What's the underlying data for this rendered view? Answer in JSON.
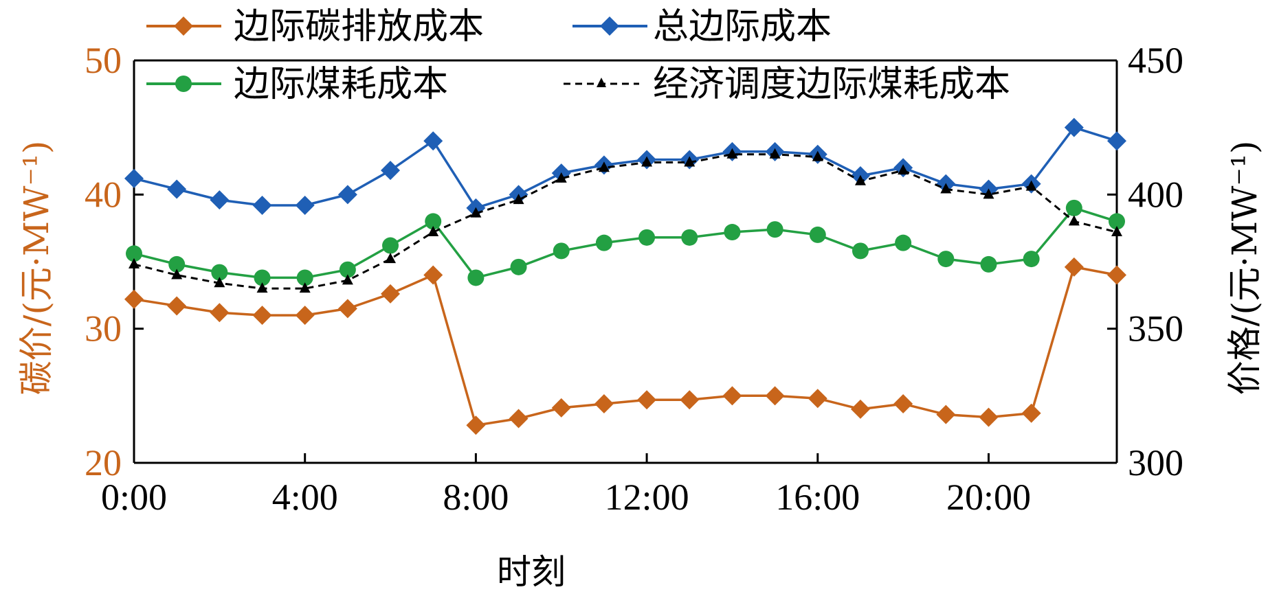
{
  "chart_data": {
    "type": "line",
    "xlabel": "时刻",
    "ylabel_left": "碳价/(元·MW⁻¹)",
    "ylabel_right": "价格/(元·MW⁻¹)",
    "x_ticks": [
      "0:00",
      "4:00",
      "8:00",
      "12:00",
      "16:00",
      "20:00"
    ],
    "x_tick_values": [
      0,
      4,
      8,
      12,
      16,
      20
    ],
    "x_range": [
      0,
      23
    ],
    "y_left_range": [
      20,
      50
    ],
    "y_left_ticks": [
      "20",
      "30",
      "40",
      "50"
    ],
    "y_left_tick_values": [
      20,
      30,
      40,
      50
    ],
    "y_right_range": [
      300,
      450
    ],
    "y_right_ticks": [
      "300",
      "350",
      "400",
      "450"
    ],
    "y_right_tick_values": [
      300,
      350,
      400,
      450
    ],
    "legend_placement": "top",
    "colors": {
      "carbon": "#c8651b",
      "total": "#1f5fb5",
      "coal": "#23a043",
      "dispatch": "#000000",
      "left_axis_text": "#c8651b",
      "right_axis_text": "#000000"
    },
    "x": [
      0,
      1,
      2,
      3,
      4,
      5,
      6,
      7,
      8,
      9,
      10,
      11,
      12,
      13,
      14,
      15,
      16,
      17,
      18,
      19,
      20,
      21,
      22,
      23
    ],
    "series": [
      {
        "key": "carbon",
        "name": "边际碳排放成本",
        "axis": "left",
        "marker": "diamond",
        "dashed": false,
        "values": [
          32.2,
          31.7,
          31.2,
          31.0,
          31.0,
          31.5,
          32.6,
          34.0,
          22.8,
          23.3,
          24.1,
          24.4,
          24.7,
          24.7,
          25.0,
          25.0,
          24.8,
          24.0,
          24.4,
          23.6,
          23.4,
          23.7,
          34.6,
          34.0
        ]
      },
      {
        "key": "total",
        "name": "总边际成本",
        "axis": "right",
        "marker": "diamond",
        "dashed": false,
        "values": [
          406,
          402,
          398,
          396,
          396,
          400,
          409,
          420,
          395,
          400,
          408,
          411,
          413,
          413,
          416,
          416,
          415,
          407,
          410,
          404,
          402,
          404,
          425,
          420
        ]
      },
      {
        "key": "coal",
        "name": "边际煤耗成本",
        "axis": "right",
        "marker": "circle",
        "dashed": false,
        "values": [
          378,
          374,
          371,
          369,
          369,
          372,
          381,
          390,
          369,
          373,
          379,
          382,
          384,
          384,
          386,
          387,
          385,
          379,
          382,
          376,
          374,
          376,
          395,
          390
        ]
      },
      {
        "key": "dispatch",
        "name": "经济调度边际煤耗成本",
        "axis": "right",
        "marker": "triangle",
        "dashed": true,
        "values": [
          374,
          370,
          367,
          365,
          365,
          368,
          376,
          386,
          393,
          398,
          406,
          410,
          412,
          412,
          415,
          415,
          414,
          405,
          409,
          402,
          400,
          403,
          390,
          386
        ]
      }
    ]
  }
}
